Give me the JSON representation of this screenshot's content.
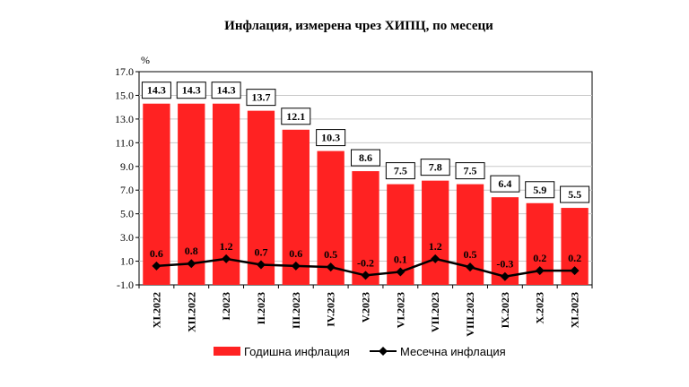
{
  "chart_data": {
    "type": "bar",
    "title": "Инфлация, измерена чрез ХИПЦ, по месеци",
    "ylabel": "%",
    "ylim": [
      -1.0,
      17.0
    ],
    "yticks": [
      "17.0",
      "15.0",
      "13.0",
      "11.0",
      "9.0",
      "7.0",
      "5.0",
      "3.0",
      "1.0",
      "-1.0"
    ],
    "categories": [
      "XI.2022",
      "XII.2022",
      "I.2023",
      "II.2023",
      "III.2023",
      "IV.2023",
      "V.2023",
      "VI.2023",
      "VII.2023",
      "VIII.2023",
      "IX.2023",
      "X.2023",
      "XI.2023"
    ],
    "series": [
      {
        "name": "Годишна инфлация",
        "type": "bar",
        "color": "#ff2222",
        "values": [
          14.3,
          14.3,
          14.3,
          13.7,
          12.1,
          10.3,
          8.6,
          7.5,
          7.8,
          7.5,
          6.4,
          5.9,
          5.5
        ],
        "labels": [
          "14.3",
          "14.3",
          "14.3",
          "13.7",
          "12.1",
          "10.3",
          "8.6",
          "7.5",
          "7.8",
          "7.5",
          "6.4",
          "5.9",
          "5.5"
        ]
      },
      {
        "name": "Месечна инфлация",
        "type": "line",
        "color": "#000000",
        "values": [
          0.6,
          0.8,
          1.2,
          0.7,
          0.6,
          0.5,
          -0.2,
          0.1,
          1.2,
          0.5,
          -0.3,
          0.2,
          0.2
        ],
        "labels": [
          "0.6",
          "0.8",
          "1.2",
          "0.7",
          "0.6",
          "0.5",
          "-0.2",
          "0.1",
          "1.2",
          "0.5",
          "-0.3",
          "0.2",
          "0.2"
        ]
      }
    ],
    "grid": true,
    "legend": "bottom"
  }
}
